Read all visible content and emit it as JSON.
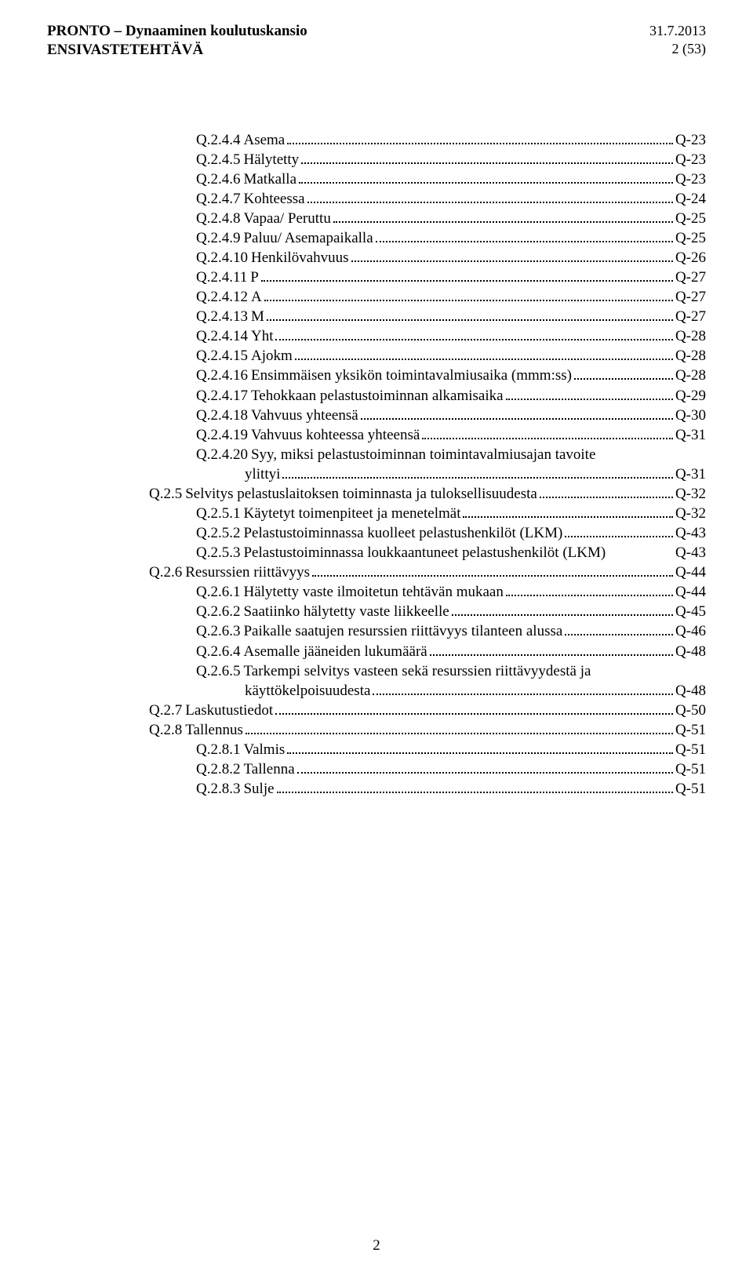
{
  "header": {
    "title_line1": "PRONTO – Dynaaminen koulutuskansio",
    "title_line2": "ENSIVASTETEHTÄVÄ",
    "date": "31.7.2013",
    "page_of": "2 (53)"
  },
  "footer": {
    "page_num": "2"
  },
  "toc": [
    {
      "indent": 1,
      "num": "Q.2.4.4",
      "title": " Asema",
      "page": "Q-23"
    },
    {
      "indent": 1,
      "num": "Q.2.4.5",
      "title": " Hälytetty",
      "page": "Q-23"
    },
    {
      "indent": 1,
      "num": "Q.2.4.6",
      "title": " Matkalla",
      "page": "Q-23"
    },
    {
      "indent": 1,
      "num": "Q.2.4.7",
      "title": " Kohteessa",
      "page": "Q-24"
    },
    {
      "indent": 1,
      "num": "Q.2.4.8",
      "title": " Vapaa/ Peruttu",
      "page": "Q-25"
    },
    {
      "indent": 1,
      "num": "Q.2.4.9",
      "title": " Paluu/ Asemapaikalla",
      "page": "Q-25"
    },
    {
      "indent": 1,
      "num": "Q.2.4.10",
      "title": " Henkilövahvuus",
      "page": "Q-26"
    },
    {
      "indent": 1,
      "num": "Q.2.4.11",
      "title": " P",
      "page": "Q-27"
    },
    {
      "indent": 1,
      "num": "Q.2.4.12",
      "title": " A",
      "page": "Q-27"
    },
    {
      "indent": 1,
      "num": "Q.2.4.13",
      "title": " M",
      "page": "Q-27"
    },
    {
      "indent": 1,
      "num": "Q.2.4.14",
      "title": " Yht",
      "page": "Q-28"
    },
    {
      "indent": 1,
      "num": "Q.2.4.15",
      "title": " Ajokm",
      "page": "Q-28"
    },
    {
      "indent": 1,
      "num": "Q.2.4.16",
      "title": " Ensimmäisen yksikön toimintavalmiusaika (mmm:ss)",
      "page": "Q-28"
    },
    {
      "indent": 1,
      "num": "Q.2.4.17",
      "title": " Tehokkaan pelastustoiminnan alkamisaika",
      "page": "Q-29"
    },
    {
      "indent": 1,
      "num": "Q.2.4.18",
      "title": " Vahvuus yhteensä",
      "page": "Q-30"
    },
    {
      "indent": 1,
      "num": "Q.2.4.19",
      "title": " Vahvuus kohteessa yhteensä",
      "page": "Q-31"
    },
    {
      "indent": 1,
      "num": "Q.2.4.20",
      "title": " Syy, miksi pelastustoiminnan toimintavalmiusajan tavoite",
      "wrap_title": "ylittyi",
      "page": "Q-31"
    },
    {
      "indent": 0,
      "num": "Q.2.5",
      "title": " Selvitys pelastuslaitoksen toiminnasta ja tuloksellisuudesta",
      "page": "Q-32"
    },
    {
      "indent": 1,
      "num": "Q.2.5.1",
      "title": " Käytetyt toimenpiteet ja menetelmät",
      "page": "Q-32"
    },
    {
      "indent": 1,
      "num": "Q.2.5.2",
      "title": " Pelastustoiminnassa kuolleet pelastushenkilöt (LKM)",
      "page": "Q-43"
    },
    {
      "indent": 1,
      "num": "Q.2.5.3",
      "title": " Pelastustoiminnassa loukkaantuneet pelastushenkilöt (LKM)",
      "page": "Q-43",
      "nodots": true
    },
    {
      "indent": 0,
      "num": "Q.2.6",
      "title": " Resurssien riittävyys",
      "page": "Q-44"
    },
    {
      "indent": 1,
      "num": "Q.2.6.1",
      "title": " Hälytetty vaste ilmoitetun tehtävän mukaan",
      "page": "Q-44"
    },
    {
      "indent": 1,
      "num": "Q.2.6.2",
      "title": " Saatiinko hälytetty vaste liikkeelle",
      "page": "Q-45"
    },
    {
      "indent": 1,
      "num": "Q.2.6.3",
      "title": " Paikalle saatujen resurssien riittävyys tilanteen alussa",
      "page": "Q-46"
    },
    {
      "indent": 1,
      "num": "Q.2.6.4",
      "title": " Asemalle jääneiden lukumäärä",
      "page": "Q-48"
    },
    {
      "indent": 1,
      "num": "Q.2.6.5",
      "title": " Tarkempi selvitys vasteen sekä resurssien riittävyydestä ja",
      "wrap_title": "käyttökelpoisuudesta",
      "page": "Q-48"
    },
    {
      "indent": 0,
      "num": "Q.2.7",
      "title": " Laskutustiedot",
      "page": "Q-50"
    },
    {
      "indent": 0,
      "num": "Q.2.8",
      "title": " Tallennus",
      "page": "Q-51"
    },
    {
      "indent": 1,
      "num": "Q.2.8.1",
      "title": " Valmis",
      "page": "Q-51"
    },
    {
      "indent": 1,
      "num": "Q.2.8.2",
      "title": " Tallenna",
      "page": "Q-51"
    },
    {
      "indent": 1,
      "num": "Q.2.8.3",
      "title": " Sulje",
      "page": "Q-51"
    }
  ]
}
